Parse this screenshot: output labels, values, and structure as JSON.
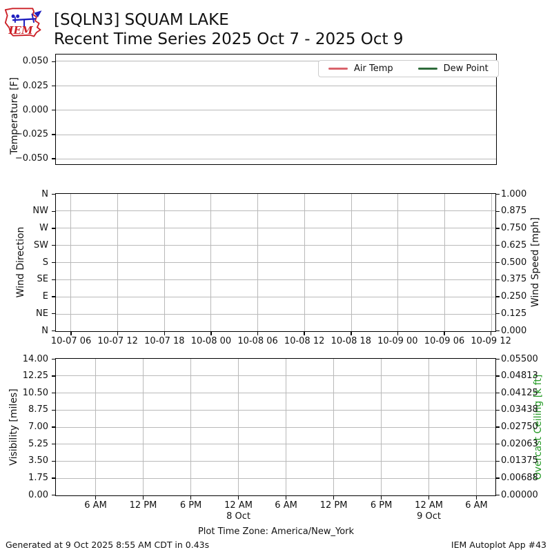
{
  "header": {
    "logo_text": "IEM",
    "title_line1": "[SQLN3] SQUAM LAKE",
    "title_line2": "Recent Time Series 2025 Oct 7 - 2025 Oct 9"
  },
  "footer": {
    "generated": "Generated at 9 Oct 2025 8:55 AM CDT in 0.43s",
    "app": "IEM Autoplot App #43"
  },
  "colors": {
    "air_temp": "#d9636b",
    "dew_point": "#2e6b3a",
    "overcast_axis": "#229922",
    "logo_red": "#cc2027",
    "logo_blue": "#1f1fbf",
    "grid": "#b9b9b9"
  },
  "chart_data": [
    {
      "type": "line",
      "ylabel": "Temperature [F]",
      "yticks": [
        "0.050",
        "0.025",
        "0.000",
        "−0.025",
        "−0.050"
      ],
      "ylim": [
        -0.055,
        0.057
      ],
      "grid": "horizontal",
      "legend_position": "upper right",
      "legend": [
        {
          "label": "Air Temp",
          "color": "#d9636b"
        },
        {
          "label": "Dew Point",
          "color": "#2e6b3a"
        }
      ],
      "series": [
        {
          "name": "Air Temp",
          "values": []
        },
        {
          "name": "Dew Point",
          "values": []
        }
      ],
      "note": "axes empty - no data plotted"
    },
    {
      "type": "line",
      "ylabel_left": "Wind Direction",
      "ylabel_right": "Wind Speed [mph]",
      "yticks_left": [
        "N",
        "NW",
        "W",
        "SW",
        "S",
        "SE",
        "E",
        "NE",
        "N"
      ],
      "yticks_right": [
        "1.000",
        "0.875",
        "0.750",
        "0.625",
        "0.500",
        "0.375",
        "0.250",
        "0.125",
        "0.000"
      ],
      "ylim_right": [
        0.0,
        1.0
      ],
      "xticks": [
        "10-07 06",
        "10-07 12",
        "10-07 18",
        "10-08 00",
        "10-08 06",
        "10-08 12",
        "10-08 18",
        "10-09 00",
        "10-09 06",
        "10-09 12"
      ],
      "grid": "both",
      "series": [],
      "note": "axes empty - no data plotted"
    },
    {
      "type": "line",
      "ylabel_left": "Visibility [miles]",
      "ylabel_right": "Overcast Ceiling [k ft]",
      "yticks_left": [
        "14.00",
        "12.25",
        "10.50",
        "8.75",
        "7.00",
        "5.25",
        "3.50",
        "1.75",
        "0.00"
      ],
      "yticks_right": [
        "0.05500",
        "0.04813",
        "0.04125",
        "0.03438",
        "0.02750",
        "0.02063",
        "0.01375",
        "0.00688",
        "0.00000"
      ],
      "ylim_left": [
        0.0,
        14.0
      ],
      "ylim_right": [
        0.0,
        0.055
      ],
      "xticks": [
        "6 AM",
        "12 PM",
        "6 PM",
        "12 AM",
        "6 AM",
        "12 PM",
        "6 PM",
        "12 AM",
        "6 AM"
      ],
      "xticks_day": [
        {
          "index": 3,
          "label": "8 Oct"
        },
        {
          "index": 7,
          "label": "9 Oct"
        }
      ],
      "xlabel": "Plot Time Zone: America/New_York",
      "grid": "both",
      "series": [],
      "note": "axes empty - no data plotted"
    }
  ]
}
